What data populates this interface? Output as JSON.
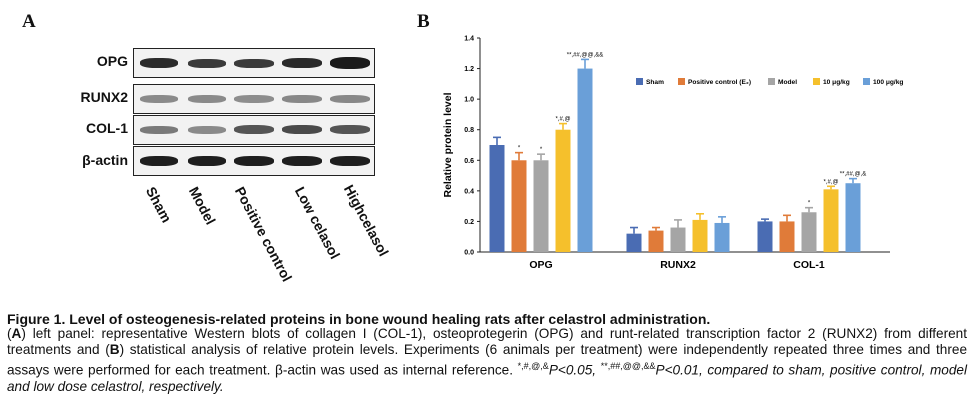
{
  "panel_a": {
    "letter": "A",
    "blot_rows": [
      "OPG",
      "RUNX2",
      "COL-1",
      "β-actin"
    ],
    "lanes": [
      "Sham",
      "Model",
      "Positive control",
      "Low celasol",
      "Highcelasol"
    ]
  },
  "panel_b": {
    "letter": "B"
  },
  "chart_data": {
    "type": "bar",
    "ylabel": "Relative protein level",
    "ylim": [
      0,
      1.4
    ],
    "yticks": [
      "0.0",
      "0.2",
      "0.4",
      "0.6",
      "0.8",
      "1.0",
      "1.2",
      "1.4"
    ],
    "categories": [
      "OPG",
      "RUNX2",
      "COL-1"
    ],
    "legend_position": "top-right",
    "series": [
      {
        "name": "Sham",
        "color": "#4a6cb3",
        "values": [
          0.7,
          0.12,
          0.2
        ],
        "errors": [
          0.05,
          0.04,
          0.015
        ]
      },
      {
        "name": "Positive control (E₂)",
        "color": "#e07b39",
        "values": [
          0.6,
          0.14,
          0.2
        ],
        "errors": [
          0.05,
          0.02,
          0.04
        ]
      },
      {
        "name": "Model",
        "color": "#a5a5a5",
        "values": [
          0.6,
          0.16,
          0.26
        ],
        "errors": [
          0.04,
          0.05,
          0.03
        ]
      },
      {
        "name": "10 μg/kg",
        "color": "#f5c02c",
        "values": [
          0.8,
          0.21,
          0.41
        ],
        "errors": [
          0.04,
          0.04,
          0.02
        ]
      },
      {
        "name": "100 μg/kg",
        "color": "#6a9fd8",
        "values": [
          1.2,
          0.19,
          0.45
        ],
        "errors": [
          0.06,
          0.04,
          0.03
        ]
      }
    ],
    "annotations": [
      {
        "text": "*",
        "category": "OPG",
        "series": "Positive control (E₂)"
      },
      {
        "text": "*",
        "category": "OPG",
        "series": "Model"
      },
      {
        "text": "*,#,@",
        "category": "OPG",
        "series": "10 μg/kg"
      },
      {
        "text": "**,##,@@,&&",
        "category": "OPG",
        "series": "100 μg/kg"
      },
      {
        "text": "*",
        "category": "COL-1",
        "series": "Model"
      },
      {
        "text": "*,#,@",
        "category": "COL-1",
        "series": "10 μg/kg"
      },
      {
        "text": "**,##,@,&",
        "category": "COL-1",
        "series": "100 μg/kg"
      }
    ]
  },
  "caption": {
    "title": "Figure 1. Level of osteogenesis-related proteins in bone wound healing rats after celastrol administration.",
    "paren_a": "A",
    "part1": ") left panel: representative Western blots of collagen I (COL-1), osteoprotegerin (OPG) and runt-related transcription factor 2 (RUNX2) from different treatments and (",
    "paren_b": "B",
    "part2": ") statistical analysis of relative protein levels. Experiments (6 animals per treatment) were independently repeated three times and three assays were performed for each treatment. β-actin was used as internal reference. ",
    "sig1_symbols": "*,#,@,&",
    "sig1_text": "P<0.05,",
    "sig2_symbols": "**,##,@@,&&",
    "sig2_text": "P<0.01, compared to sham, positive control, model and low dose celastrol, respectively."
  }
}
